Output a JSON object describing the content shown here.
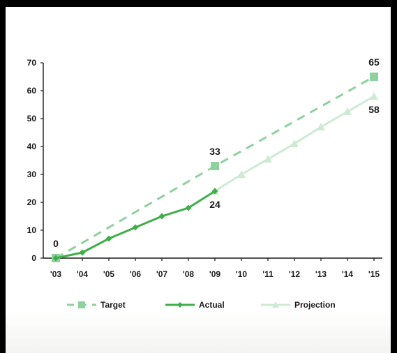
{
  "colors": {
    "target": "#8fd19e",
    "actual": "#3fae49",
    "projection": "#cdebd2",
    "axis": "#1a1a1a"
  },
  "chart_data": {
    "type": "line",
    "title": "",
    "xlabel": "",
    "ylabel": "",
    "ylim": [
      0,
      70
    ],
    "yticks": [
      "0",
      "10",
      "20",
      "30",
      "40",
      "50",
      "60",
      "70"
    ],
    "categories": [
      "'03",
      "'04",
      "'05",
      "'06",
      "'07",
      "'08",
      "'09",
      "'10",
      "'11",
      "'12",
      "'13",
      "'14",
      "'15"
    ],
    "grid": false,
    "legend_position": "bottom",
    "series": [
      {
        "name": "Target",
        "style": "dashed",
        "marker": "square",
        "values": [
          0,
          null,
          null,
          null,
          null,
          null,
          33,
          null,
          null,
          null,
          null,
          null,
          65
        ]
      },
      {
        "name": "Actual",
        "style": "solid",
        "marker": "diamond",
        "values": [
          0,
          2,
          7,
          11,
          15,
          18,
          24,
          null,
          null,
          null,
          null,
          null,
          null
        ]
      },
      {
        "name": "Projection",
        "style": "solid",
        "marker": "triangle",
        "values": [
          null,
          null,
          null,
          null,
          null,
          null,
          24,
          30,
          35.5,
          41,
          47,
          52.5,
          58
        ]
      }
    ],
    "data_labels": [
      {
        "series": "Actual",
        "category": "'03",
        "text": "0",
        "position": "above"
      },
      {
        "series": "Target",
        "category": "'09",
        "text": "33",
        "position": "above"
      },
      {
        "series": "Actual",
        "category": "'09",
        "text": "24",
        "position": "below"
      },
      {
        "series": "Target",
        "category": "'15",
        "text": "65",
        "position": "above"
      },
      {
        "series": "Projection",
        "category": "'15",
        "text": "58",
        "position": "below"
      }
    ]
  }
}
